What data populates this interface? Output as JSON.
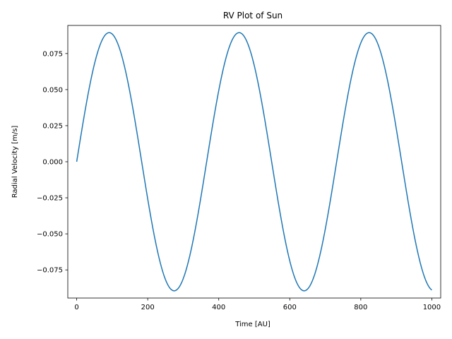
{
  "chart_data": {
    "type": "line",
    "title": "RV Plot of Sun",
    "xlabel": "Time [AU]",
    "ylabel": "Radial Velocity [m/s]",
    "xlim": [
      -25,
      1025
    ],
    "ylim": [
      -0.0945,
      0.0945
    ],
    "xticks": [
      0,
      200,
      400,
      600,
      800,
      1000
    ],
    "xtick_labels": [
      "0",
      "200",
      "400",
      "600",
      "800",
      "1000"
    ],
    "yticks": [
      -0.075,
      -0.05,
      -0.025,
      0.0,
      0.025,
      0.05,
      0.075
    ],
    "ytick_labels": [
      "−0.075",
      "−0.050",
      "−0.025",
      "0.000",
      "0.025",
      "0.050",
      "0.075"
    ],
    "grid": false,
    "series": [
      {
        "color": "#1f77b4",
        "x_start": 0,
        "x_end": 1000,
        "amplitude": 0.0895,
        "period": 366,
        "phase": 0
      }
    ]
  }
}
